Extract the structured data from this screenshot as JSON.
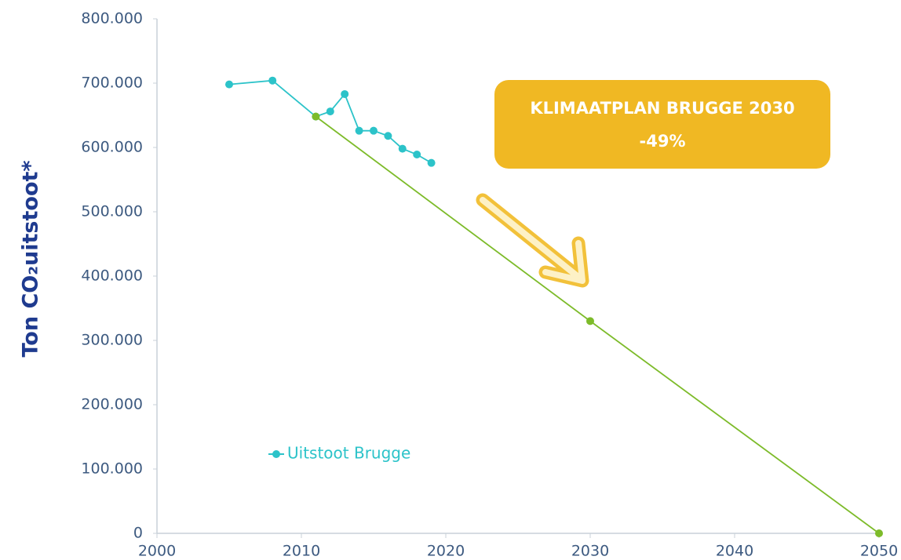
{
  "chart_data": {
    "type": "line",
    "y_axis_label": "Ton CO₂uitstoot*",
    "annotation": {
      "title": "KLIMAATPLAN BRUGGE 2030",
      "text": "-49%"
    },
    "xlim": [
      2000,
      2050
    ],
    "xticks": [
      2000,
      2010,
      2020,
      2030,
      2040,
      2050
    ],
    "ylim": [
      0,
      800000
    ],
    "yticks": [
      0,
      {
        "value": 100000,
        "label": "100.000"
      },
      {
        "value": 200000,
        "label": "200.000"
      },
      {
        "value": 300000,
        "label": "300.000"
      },
      {
        "value": 400000,
        "label": "400.000"
      },
      {
        "value": 500000,
        "label": "500.000"
      },
      {
        "value": 600000,
        "label": "600.000"
      },
      {
        "value": 700000,
        "label": "700.000"
      },
      {
        "value": 800000,
        "label": "800.000"
      }
    ],
    "grid": false,
    "series": [
      {
        "name": "Uitstoot Brugge",
        "color": "#2cc3c9",
        "x": [
          2005,
          2008,
          2011,
          2012,
          2013,
          2014,
          2015,
          2016,
          2017,
          2018,
          2019
        ],
        "values": [
          698000,
          704000,
          648000,
          656000,
          683000,
          626000,
          626000,
          618000,
          598000,
          589000,
          576000
        ]
      },
      {
        "color": "#7dbb2a",
        "x": [
          2011,
          2030,
          2050
        ],
        "values": [
          648000,
          330000,
          0
        ]
      }
    ]
  }
}
